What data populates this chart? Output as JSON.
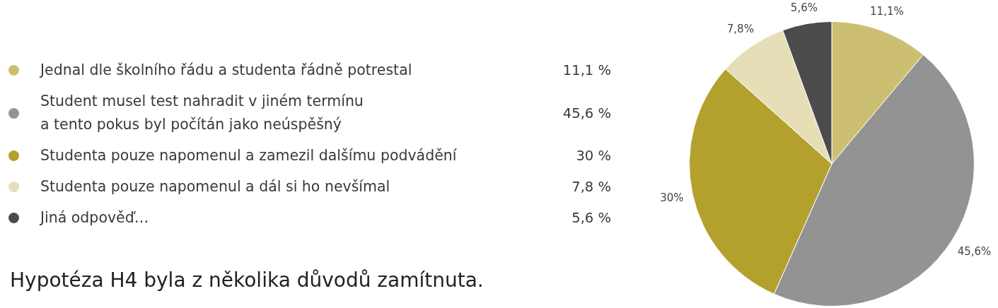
{
  "chart_data": {
    "type": "pie",
    "categories": [
      "Jednal dle školního řádu a studenta řádně potrestal",
      "Student musel test nahradit v jiném termínu\na tento pokus byl počítán jako neúspěšný",
      "Studenta pouze napomenul a zamezil dalšímu podvádění",
      "Studenta pouze napomenul a dál si ho nevšímal",
      "Jiná odpověď…"
    ],
    "values": [
      11.1,
      45.6,
      30,
      7.8,
      5.6
    ],
    "colors": [
      "#cdbf72",
      "#939393",
      "#b4a02c",
      "#e6deb6",
      "#4b4b4b"
    ],
    "value_labels": [
      "11,1%",
      "45,6%",
      "30%",
      "7,8%",
      "5,6%"
    ],
    "annotations": [
      "11,1 %",
      "45,6 %",
      "30 %",
      "7,8 %",
      "5,6 %",
      "Hypotéza H4 byla z několika důvodů zamítnuta."
    ],
    "legend": "left"
  }
}
